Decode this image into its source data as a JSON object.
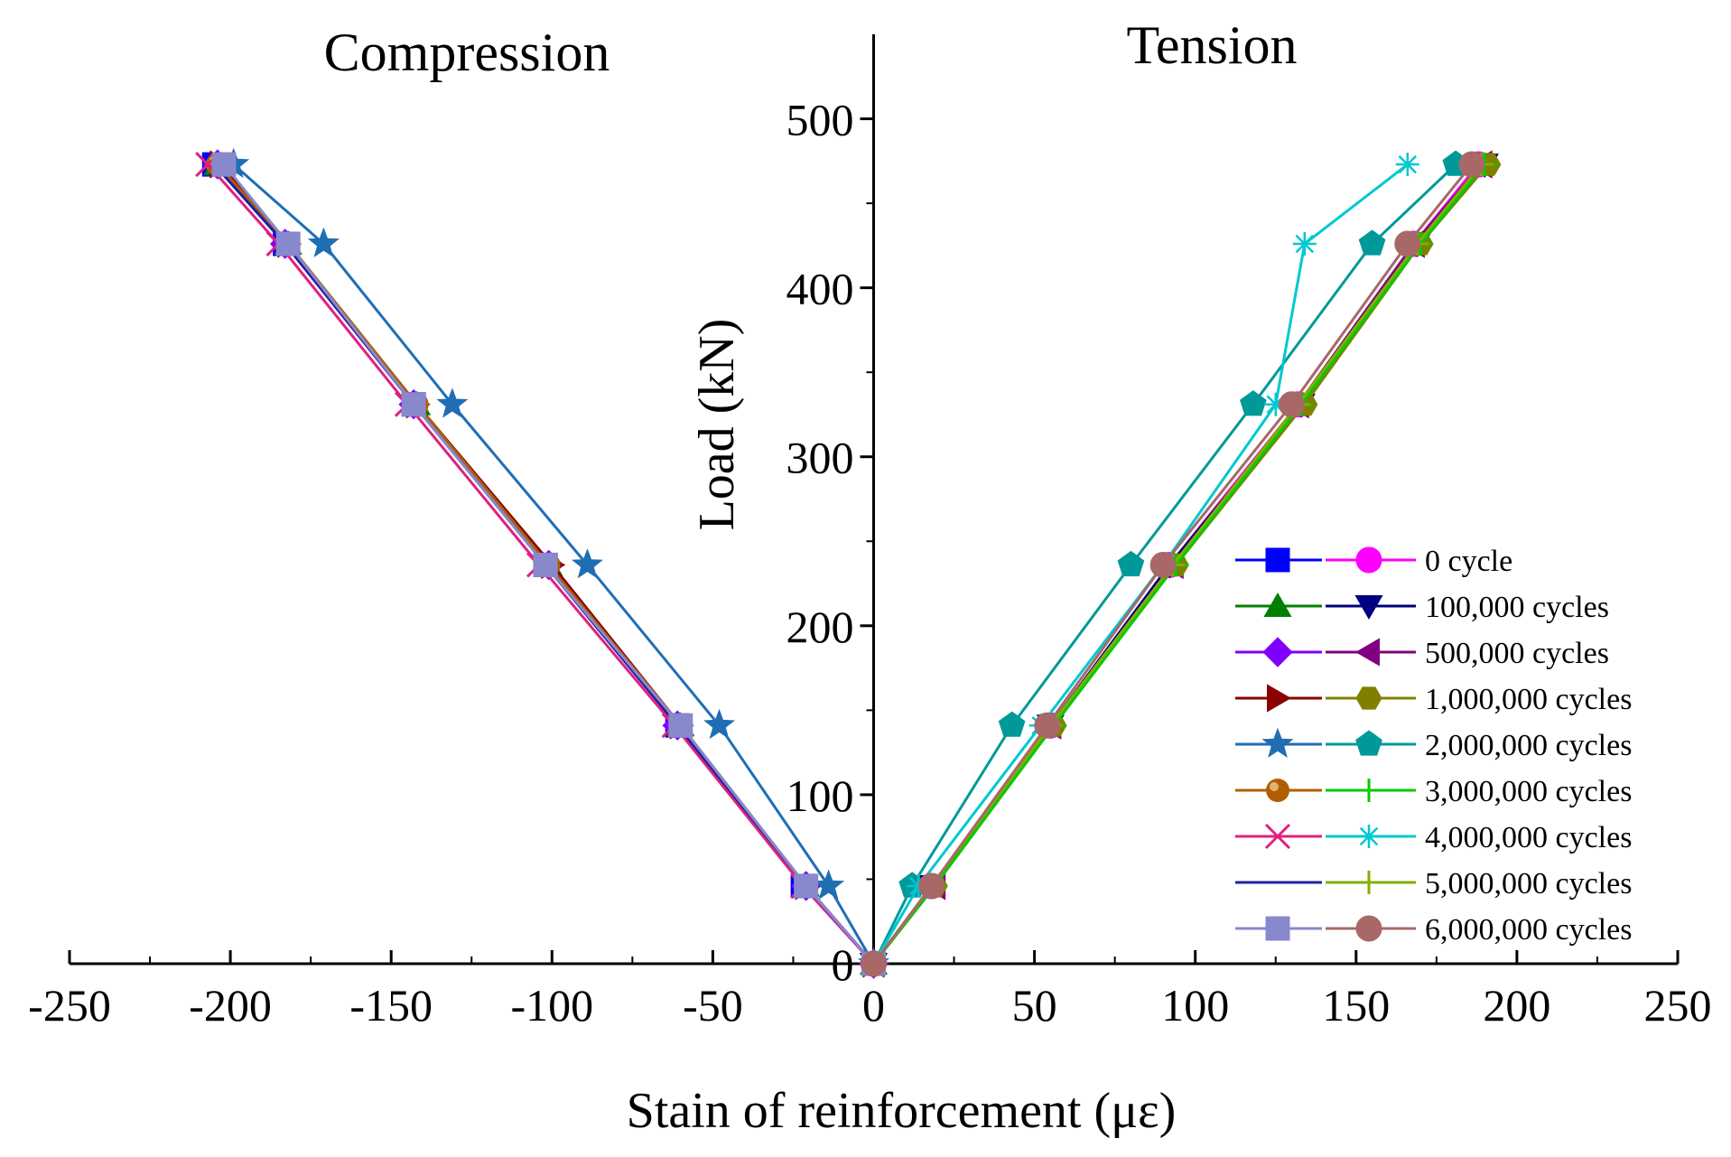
{
  "chart_data": {
    "type": "line",
    "xlabel": "Stain of reinforcement (μɛ)",
    "ylabel": "Load (kN)",
    "xlim": [
      -250,
      250
    ],
    "ylim": [
      0,
      550
    ],
    "x_ticks": [
      -250,
      -200,
      -150,
      -100,
      -50,
      0,
      50,
      100,
      150,
      200,
      250
    ],
    "x_tick_labels": [
      "-250",
      "-200",
      "-150",
      "-100",
      "-50",
      "0",
      "50",
      "100",
      "150",
      "200",
      "250"
    ],
    "y_ticks": [
      0,
      100,
      200,
      300,
      400,
      500
    ],
    "y_tick_labels": [
      "0",
      "100",
      "200",
      "300",
      "400",
      "500"
    ],
    "annotations": {
      "compression": "Compression",
      "tension": "Tension"
    },
    "legend_position": "right",
    "legend": [
      {
        "label": "0 cycle",
        "left": "s0c",
        "right": "s0t"
      },
      {
        "label": "100,000 cycles",
        "left": "s1c",
        "right": "s1t"
      },
      {
        "label": "500,000 cycles",
        "left": "s2c",
        "right": "s2t"
      },
      {
        "label": "1,000,000 cycles",
        "left": "s3c",
        "right": "s3t"
      },
      {
        "label": "2,000,000 cycles",
        "left": "s4c",
        "right": "s4t"
      },
      {
        "label": "3,000,000 cycles",
        "left": "s5c",
        "right": "s5t"
      },
      {
        "label": "4,000,000 cycles",
        "left": "s6c",
        "right": "s6t"
      },
      {
        "label": "5,000,000 cycles",
        "left": "s7c",
        "right": "s7t"
      },
      {
        "label": "6,000,000 cycles",
        "left": "s8c",
        "right": "s8t"
      }
    ],
    "series": [
      {
        "id": "s0c",
        "name": "0 cycle (compression)",
        "color": "#0000ff",
        "marker": "square",
        "x": [
          0,
          -22,
          -61,
          -102,
          -143,
          -183,
          -205
        ],
        "y": [
          0,
          46,
          141,
          236,
          331,
          426,
          473
        ]
      },
      {
        "id": "s0t",
        "name": "0 cycle (tension)",
        "color": "#ff00ff",
        "marker": "circle",
        "x": [
          0,
          18,
          55,
          92,
          132,
          168,
          188
        ],
        "y": [
          0,
          46,
          141,
          236,
          331,
          426,
          473
        ]
      },
      {
        "id": "s1c",
        "name": "100,000 cycles (compression)",
        "color": "#008000",
        "marker": "triangle-up",
        "x": [
          0,
          -21,
          -60,
          -101,
          -142,
          -182,
          -204
        ],
        "y": [
          0,
          46,
          141,
          236,
          331,
          426,
          473
        ]
      },
      {
        "id": "s1t",
        "name": "100,000 cycles (tension)",
        "color": "#000080",
        "marker": "triangle-down",
        "x": [
          0,
          18,
          55,
          92,
          133,
          169,
          190
        ],
        "y": [
          0,
          46,
          141,
          236,
          331,
          426,
          473
        ]
      },
      {
        "id": "s2c",
        "name": "500,000 cycles (compression)",
        "color": "#8000ff",
        "marker": "diamond",
        "x": [
          0,
          -21,
          -61,
          -101,
          -143,
          -183,
          -204
        ],
        "y": [
          0,
          46,
          141,
          236,
          331,
          426,
          473
        ]
      },
      {
        "id": "s2t",
        "name": "500,000 cycles (tension)",
        "color": "#800080",
        "marker": "triangle-left",
        "x": [
          0,
          19,
          55,
          93,
          132,
          168,
          189
        ],
        "y": [
          0,
          46,
          141,
          236,
          331,
          426,
          473
        ]
      },
      {
        "id": "s3c",
        "name": "1,000,000 cycles (compression)",
        "color": "#8b0000",
        "marker": "triangle-right",
        "x": [
          0,
          -21,
          -60,
          -100,
          -142,
          -182,
          -203
        ],
        "y": [
          0,
          46,
          141,
          236,
          331,
          426,
          473
        ]
      },
      {
        "id": "s3t",
        "name": "1,000,000 cycles (tension)",
        "color": "#808000",
        "marker": "hexagon",
        "x": [
          0,
          19,
          56,
          94,
          134,
          170,
          191
        ],
        "y": [
          0,
          46,
          141,
          236,
          331,
          426,
          473
        ]
      },
      {
        "id": "s4c",
        "name": "2,000,000 cycles (compression)",
        "color": "#1f6eb4",
        "marker": "star",
        "x": [
          0,
          -14,
          -48,
          -89,
          -131,
          -171,
          -199
        ],
        "y": [
          0,
          46,
          141,
          236,
          331,
          426,
          473
        ]
      },
      {
        "id": "s4t",
        "name": "2,000,000 cycles (tension)",
        "color": "#009999",
        "marker": "pentagon",
        "x": [
          0,
          12,
          43,
          80,
          118,
          155,
          181
        ],
        "y": [
          0,
          46,
          141,
          236,
          331,
          426,
          473
        ]
      },
      {
        "id": "s5c",
        "name": "3,000,000 cycles (compression)",
        "color": "#b05f00",
        "marker": "sphere",
        "x": [
          0,
          -21,
          -60,
          -101,
          -142,
          -182,
          -204
        ],
        "y": [
          0,
          46,
          141,
          236,
          331,
          426,
          473
        ]
      },
      {
        "id": "s5t",
        "name": "3,000,000 cycles (tension)",
        "color": "#00cc00",
        "marker": "plus",
        "x": [
          0,
          19,
          56,
          94,
          133,
          170,
          190
        ],
        "y": [
          0,
          46,
          141,
          236,
          331,
          426,
          473
        ]
      },
      {
        "id": "s6c",
        "name": "4,000,000 cycles (compression)",
        "color": "#e0207f",
        "marker": "x",
        "x": [
          0,
          -22,
          -62,
          -104,
          -145,
          -185,
          -207
        ],
        "y": [
          0,
          46,
          141,
          236,
          331,
          426,
          473
        ]
      },
      {
        "id": "s6t",
        "name": "4,000,000 cycles (tension)",
        "color": "#00c8d0",
        "marker": "asterisk",
        "x": [
          0,
          14,
          52,
          90,
          125,
          134,
          166
        ],
        "y": [
          0,
          46,
          141,
          236,
          331,
          426,
          473
        ]
      },
      {
        "id": "s7c",
        "name": "5,000,000 cycles (compression)",
        "color": "#2020a0",
        "marker": "none",
        "x": [
          0,
          -21,
          -61,
          -102,
          -143,
          -183,
          -205
        ],
        "y": [
          0,
          46,
          141,
          236,
          331,
          426,
          473
        ]
      },
      {
        "id": "s7t",
        "name": "5,000,000 cycles (tension)",
        "color": "#80b000",
        "marker": "plus",
        "x": [
          0,
          18,
          55,
          93,
          132,
          169,
          189
        ],
        "y": [
          0,
          46,
          141,
          236,
          331,
          426,
          473
        ]
      },
      {
        "id": "s8c",
        "name": "6,000,000 cycles (compression)",
        "color": "#8888cc",
        "marker": "square",
        "x": [
          0,
          -21,
          -60,
          -102,
          -143,
          -182,
          -202
        ],
        "y": [
          0,
          46,
          141,
          236,
          331,
          426,
          473
        ]
      },
      {
        "id": "s8t",
        "name": "6,000,000 cycles (tension)",
        "color": "#a86868",
        "marker": "circle",
        "x": [
          0,
          18,
          54,
          90,
          130,
          166,
          186
        ],
        "y": [
          0,
          46,
          141,
          236,
          331,
          426,
          473
        ]
      }
    ]
  }
}
